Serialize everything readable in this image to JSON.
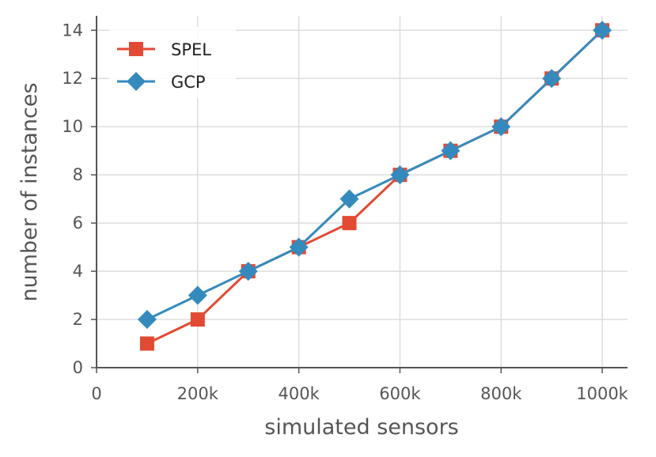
{
  "chart_data": {
    "type": "line",
    "title": "",
    "xlabel": "simulated sensors",
    "ylabel": "number of instances",
    "xlim": [
      0,
      1050000
    ],
    "ylim": [
      0,
      14.6
    ],
    "x_ticks": [
      {
        "value": 0,
        "label": "0"
      },
      {
        "value": 200000,
        "label": "200k"
      },
      {
        "value": 400000,
        "label": "400k"
      },
      {
        "value": 600000,
        "label": "600k"
      },
      {
        "value": 800000,
        "label": "800k"
      },
      {
        "value": 1000000,
        "label": "1000k"
      }
    ],
    "y_ticks": [
      {
        "value": 0,
        "label": "0"
      },
      {
        "value": 2,
        "label": "2"
      },
      {
        "value": 4,
        "label": "4"
      },
      {
        "value": 6,
        "label": "6"
      },
      {
        "value": 8,
        "label": "8"
      },
      {
        "value": 10,
        "label": "10"
      },
      {
        "value": 12,
        "label": "12"
      },
      {
        "value": 14,
        "label": "14"
      }
    ],
    "grid": true,
    "legend_position": "top-left",
    "x": [
      100000,
      200000,
      300000,
      400000,
      500000,
      600000,
      700000,
      800000,
      900000,
      1000000
    ],
    "series": [
      {
        "name": "SPEL",
        "marker": "square",
        "color": "#E24A33",
        "values": [
          1,
          2,
          4,
          5,
          6,
          8,
          9,
          10,
          12,
          14
        ]
      },
      {
        "name": "GCP",
        "marker": "diamond",
        "color": "#348ABD",
        "values": [
          2,
          3,
          4,
          5,
          7,
          8,
          9,
          10,
          12,
          14
        ]
      }
    ]
  }
}
